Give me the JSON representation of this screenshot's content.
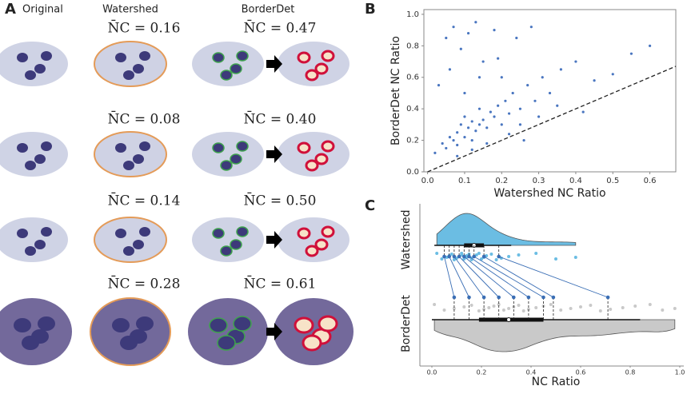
{
  "panel_a": {
    "label": "A",
    "columns": [
      "Original",
      "Watershed",
      "BorderDet"
    ],
    "rows": [
      {
        "watershed_nc": "N̄C = 0.16",
        "borderdet_nc": "N̄C = 0.47"
      },
      {
        "watershed_nc": "N̄C = 0.08",
        "borderdet_nc": "N̄C = 0.40"
      },
      {
        "watershed_nc": "N̄C = 0.14",
        "borderdet_nc": "N̄C = 0.50"
      },
      {
        "watershed_nc": "N̄C = 0.28",
        "borderdet_nc": "N̄C = 0.61"
      }
    ]
  },
  "chart_data": [
    {
      "type": "scatter",
      "label": "B",
      "x_label": "Watershed NC Ratio",
      "y_label": "BorderDet NC Ratio",
      "xlim": [
        -0.01,
        0.67
      ],
      "ylim": [
        0,
        1.03
      ],
      "xticks": [
        {
          "value": 0,
          "label": "0.0"
        },
        0.1,
        0.2,
        0.3,
        0.4,
        0.5,
        0.6
      ],
      "yticks": [
        {
          "value": 0,
          "label": "0.0"
        },
        0.2,
        0.4,
        0.6,
        0.8,
        {
          "value": 1,
          "label": "1.0"
        }
      ],
      "diagonal": true,
      "color": "#4a76c0",
      "x": [
        0.02,
        0.04,
        0.05,
        0.06,
        0.07,
        0.08,
        0.08,
        0.09,
        0.1,
        0.1,
        0.11,
        0.12,
        0.12,
        0.13,
        0.14,
        0.14,
        0.15,
        0.16,
        0.17,
        0.18,
        0.19,
        0.2,
        0.21,
        0.22,
        0.23,
        0.25,
        0.27,
        0.29,
        0.31,
        0.33,
        0.36,
        0.4,
        0.45,
        0.5,
        0.55,
        0.6,
        0.05,
        0.07,
        0.09,
        0.11,
        0.13,
        0.15,
        0.18,
        0.2,
        0.24,
        0.28,
        0.03,
        0.06,
        0.1,
        0.14,
        0.19,
        0.25,
        0.3,
        0.35,
        0.42,
        0.08,
        0.12,
        0.16,
        0.22,
        0.26
      ],
      "y": [
        0.12,
        0.18,
        0.15,
        0.22,
        0.2,
        0.25,
        0.17,
        0.3,
        0.22,
        0.35,
        0.28,
        0.32,
        0.2,
        0.26,
        0.4,
        0.3,
        0.33,
        0.28,
        0.38,
        0.35,
        0.42,
        0.3,
        0.45,
        0.37,
        0.5,
        0.4,
        0.55,
        0.45,
        0.6,
        0.5,
        0.65,
        0.7,
        0.58,
        0.62,
        0.75,
        0.8,
        0.85,
        0.92,
        0.78,
        0.88,
        0.95,
        0.7,
        0.9,
        0.6,
        0.85,
        0.92,
        0.55,
        0.65,
        0.5,
        0.6,
        0.72,
        0.3,
        0.35,
        0.42,
        0.38,
        0.1,
        0.14,
        0.18,
        0.24,
        0.2
      ]
    },
    {
      "type": "raincloud",
      "label": "C",
      "x_label": "NC Ratio",
      "xlim": [
        0,
        1
      ],
      "xticks": [
        {
          "value": 0,
          "label": "0.0"
        },
        0.2,
        0.4,
        0.6,
        0.8,
        {
          "value": 1,
          "label": "1.0"
        }
      ],
      "series": [
        {
          "name": "Watershed",
          "color": "#6bbde3",
          "values": [
            0.02,
            0.04,
            0.06,
            0.07,
            0.08,
            0.09,
            0.1,
            0.11,
            0.12,
            0.12,
            0.13,
            0.14,
            0.14,
            0.15,
            0.16,
            0.16,
            0.17,
            0.18,
            0.19,
            0.2,
            0.21,
            0.22,
            0.24,
            0.26,
            0.28,
            0.31,
            0.35,
            0.42,
            0.5,
            0.58
          ],
          "box": {
            "low": 0.01,
            "q1": 0.13,
            "median": 0.17,
            "q3": 0.21,
            "high": 0.32
          },
          "pairs": [
            0.05,
            0.07,
            0.09,
            0.11,
            0.13,
            0.15,
            0.17,
            0.21,
            0.27
          ]
        },
        {
          "name": "BorderDet",
          "color": "#c9c9c9",
          "values": [
            0.01,
            0.05,
            0.09,
            0.13,
            0.16,
            0.19,
            0.21,
            0.23,
            0.25,
            0.27,
            0.29,
            0.31,
            0.33,
            0.35,
            0.37,
            0.39,
            0.42,
            0.45,
            0.48,
            0.52,
            0.56,
            0.6,
            0.64,
            0.68,
            0.72,
            0.77,
            0.82,
            0.88,
            0.93,
            0.98
          ],
          "box": {
            "low": 0.0,
            "q1": 0.19,
            "median": 0.31,
            "q3": 0.45,
            "high": 0.84
          },
          "pairs": [
            0.09,
            0.15,
            0.21,
            0.27,
            0.33,
            0.39,
            0.45,
            0.49,
            0.71
          ]
        }
      ],
      "pair_color": "#3a6eb5"
    }
  ]
}
